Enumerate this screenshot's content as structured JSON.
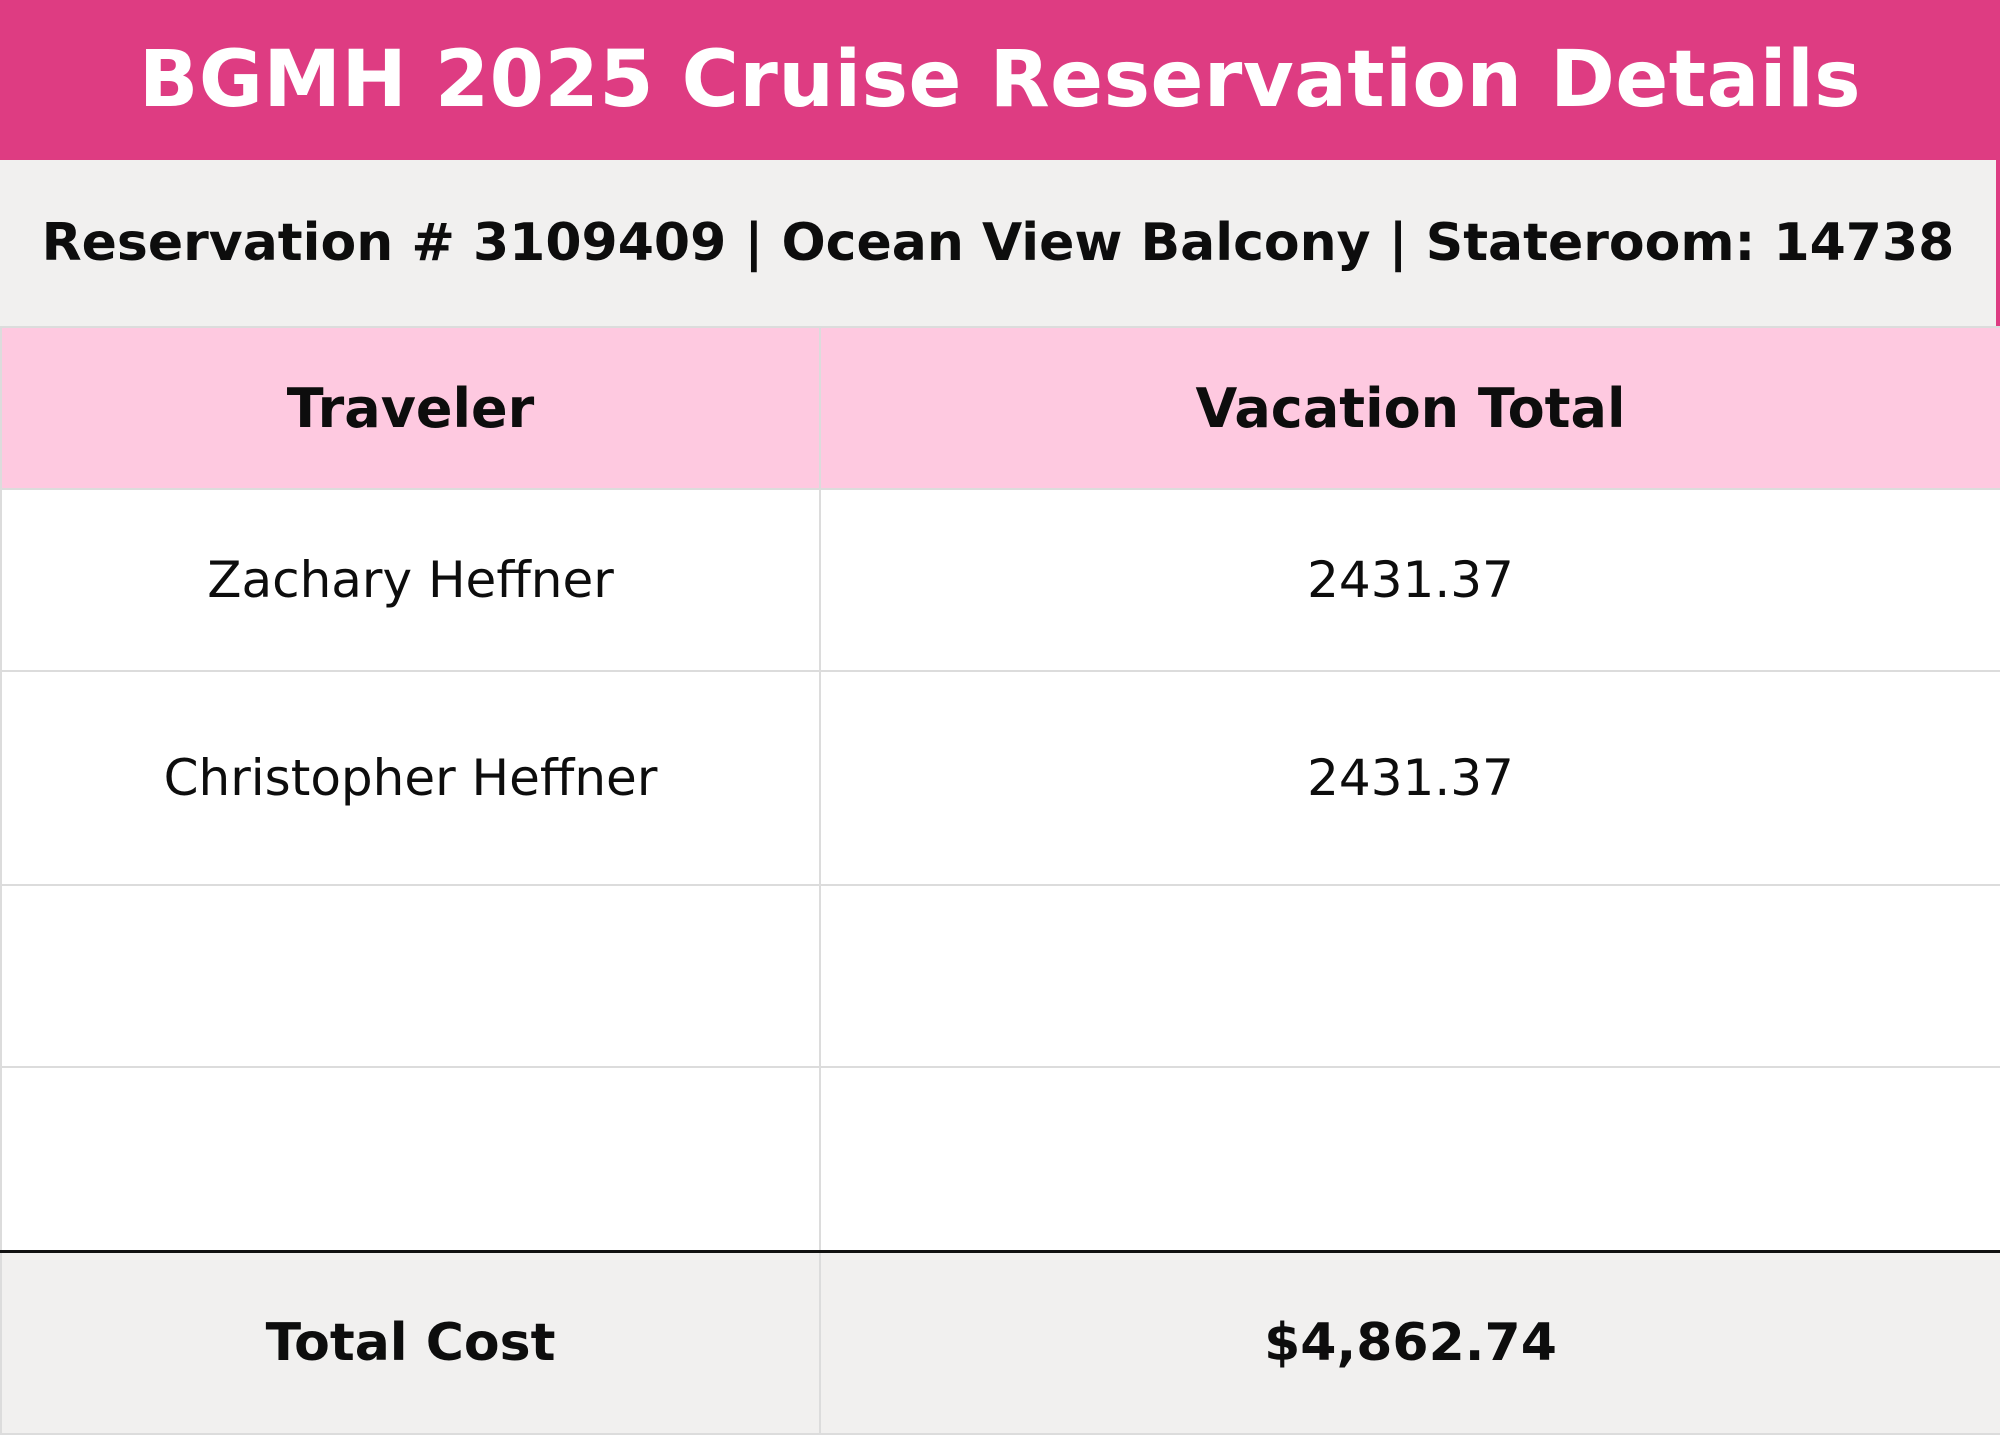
{
  "header": {
    "title": "BGMH 2025 Cruise Reservation Details"
  },
  "reservation": {
    "summary": "Reservation # 3109409 | Ocean View Balcony | Stateroom: 14738"
  },
  "table": {
    "columns": [
      "Traveler",
      "Vacation Total"
    ],
    "rows": [
      {
        "traveler": "Zachary Heffner",
        "total": "2431.37"
      },
      {
        "traveler": "Christopher Heffner",
        "total": "2431.37"
      },
      {
        "traveler": "",
        "total": ""
      },
      {
        "traveler": "",
        "total": ""
      }
    ],
    "footer": {
      "label": "Total Cost",
      "value": "$4,862.74"
    }
  },
  "colors": {
    "title_bar": "#de3c82",
    "subtitle_bar": "#f1f0ef",
    "header_row": "#fec9e0",
    "footer_row": "#f1f0ef"
  }
}
